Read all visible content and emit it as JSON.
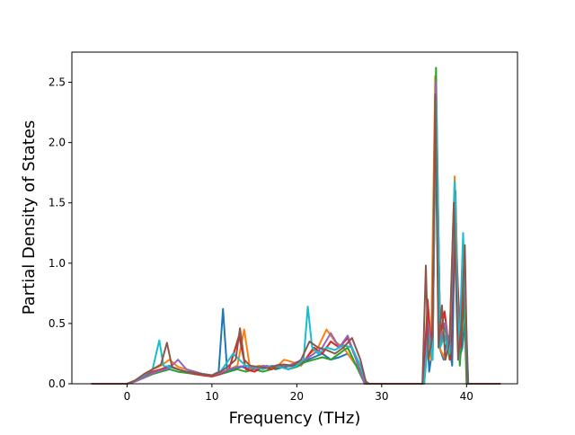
{
  "chart_data": {
    "type": "line",
    "title": "",
    "xlabel": "Frequency (THz)",
    "ylabel": "Partial Density of States",
    "xlim": [
      -6.5,
      46.0
    ],
    "ylim": [
      0.0,
      2.75
    ],
    "xticks": [
      0,
      10,
      20,
      30,
      40
    ],
    "yticks": [
      0.0,
      0.5,
      1.0,
      1.5,
      2.0,
      2.5
    ],
    "xtick_labels": [
      "0",
      "10",
      "20",
      "30",
      "40"
    ],
    "ytick_labels": [
      "0.0",
      "0.5",
      "1.0",
      "1.5",
      "2.0",
      "2.5"
    ],
    "grid": false,
    "legend": "none",
    "series": [
      {
        "color": "#1f77b4",
        "x": [
          -4.2,
          0,
          1,
          2,
          3,
          4,
          5,
          6,
          7,
          8,
          9,
          10,
          10.8,
          11.3,
          11.8,
          12.5,
          13.5,
          14.5,
          15.5,
          16.5,
          17.5,
          18.5,
          19.5,
          20.5,
          21.3,
          22,
          23,
          24,
          25,
          26,
          27,
          28,
          28.5,
          34.8,
          35.3,
          35.6,
          36.0,
          36.4,
          36.8,
          37.3,
          37.8,
          38.3,
          38.7,
          39.1,
          39.5,
          39.9,
          40.2,
          44
        ],
        "y": [
          0,
          0,
          0.02,
          0.06,
          0.1,
          0.12,
          0.15,
          0.12,
          0.1,
          0.09,
          0.08,
          0.07,
          0.1,
          0.62,
          0.1,
          0.12,
          0.14,
          0.12,
          0.13,
          0.15,
          0.12,
          0.14,
          0.15,
          0.18,
          0.2,
          0.22,
          0.25,
          0.2,
          0.22,
          0.25,
          0.15,
          0.03,
          0,
          0,
          0.5,
          0.1,
          0.3,
          2.45,
          0.3,
          0.2,
          0.4,
          0.15,
          1.6,
          0.2,
          0.3,
          0.6,
          0,
          0
        ]
      },
      {
        "color": "#ff7f0e",
        "x": [
          -4.2,
          0,
          1,
          2,
          3,
          4,
          5,
          6,
          7,
          8,
          9,
          10,
          11,
          12,
          13,
          13.8,
          14.5,
          15.5,
          16.5,
          17.5,
          18.5,
          19.5,
          20.5,
          21.5,
          22.5,
          23.5,
          24.5,
          25.5,
          26.5,
          27.5,
          28.3,
          35.0,
          35.4,
          35.8,
          36.3,
          36.8,
          37.5,
          38.0,
          38.6,
          39.2,
          39.8,
          40.1,
          44
        ],
        "y": [
          0,
          0,
          0.03,
          0.08,
          0.12,
          0.15,
          0.2,
          0.14,
          0.12,
          0.1,
          0.08,
          0.07,
          0.08,
          0.12,
          0.15,
          0.45,
          0.12,
          0.15,
          0.14,
          0.13,
          0.2,
          0.18,
          0.15,
          0.25,
          0.3,
          0.45,
          0.35,
          0.3,
          0.2,
          0.12,
          0,
          0,
          0.6,
          0.2,
          2.55,
          0.3,
          0.2,
          0.35,
          1.72,
          0.2,
          0.9,
          0,
          0
        ]
      },
      {
        "color": "#2ca02c",
        "x": [
          -4.2,
          0,
          1,
          2,
          3,
          4,
          5,
          6,
          7,
          8,
          9,
          10,
          11,
          12,
          13,
          14,
          15,
          16,
          17,
          18,
          19,
          20,
          21,
          22,
          23,
          24,
          25,
          26,
          27,
          28,
          35.0,
          35.5,
          36.0,
          36.4,
          36.9,
          37.4,
          38.0,
          38.6,
          39.2,
          39.7,
          40.0,
          44
        ],
        "y": [
          0,
          0,
          0.02,
          0.05,
          0.08,
          0.1,
          0.12,
          0.1,
          0.09,
          0.08,
          0.07,
          0.06,
          0.08,
          0.1,
          0.12,
          0.1,
          0.12,
          0.1,
          0.12,
          0.14,
          0.12,
          0.14,
          0.18,
          0.2,
          0.22,
          0.2,
          0.25,
          0.3,
          0.15,
          0,
          0,
          0.4,
          0.2,
          2.62,
          0.3,
          0.5,
          0.2,
          1.3,
          0.15,
          0.7,
          0,
          0
        ]
      },
      {
        "color": "#d62728",
        "x": [
          -4.2,
          0,
          1,
          2,
          3,
          4,
          5,
          6,
          7,
          8,
          9,
          10,
          11,
          12,
          13.2,
          14,
          15,
          16,
          17,
          18,
          19,
          20,
          21,
          22,
          23,
          24,
          25,
          26,
          27,
          28,
          35.0,
          35.4,
          35.9,
          36.4,
          36.9,
          37.4,
          38.1,
          38.6,
          39.3,
          39.8,
          40.1,
          44
        ],
        "y": [
          0,
          0,
          0.02,
          0.06,
          0.1,
          0.12,
          0.14,
          0.12,
          0.1,
          0.08,
          0.07,
          0.06,
          0.08,
          0.12,
          0.4,
          0.12,
          0.1,
          0.14,
          0.12,
          0.15,
          0.12,
          0.15,
          0.2,
          0.3,
          0.25,
          0.35,
          0.3,
          0.38,
          0.2,
          0,
          0,
          0.7,
          0.25,
          2.3,
          0.4,
          0.6,
          0.2,
          1.4,
          0.3,
          0.9,
          0,
          0
        ]
      },
      {
        "color": "#9467bd",
        "x": [
          -4.2,
          0,
          1,
          2,
          3,
          4,
          5,
          6,
          7,
          8,
          9,
          10,
          11,
          12,
          13,
          14,
          15,
          16,
          17,
          18,
          19,
          20,
          21,
          22,
          23,
          24,
          25,
          26,
          27,
          28,
          35.0,
          35.5,
          36.0,
          36.4,
          36.9,
          37.5,
          38.0,
          38.6,
          39.1,
          39.7,
          40.1,
          44
        ],
        "y": [
          0,
          0,
          0.02,
          0.05,
          0.09,
          0.11,
          0.13,
          0.2,
          0.12,
          0.1,
          0.08,
          0.07,
          0.09,
          0.12,
          0.14,
          0.15,
          0.12,
          0.15,
          0.14,
          0.16,
          0.15,
          0.18,
          0.2,
          0.25,
          0.3,
          0.42,
          0.3,
          0.4,
          0.2,
          0,
          0,
          0.5,
          0.2,
          2.5,
          0.35,
          0.5,
          0.3,
          1.5,
          0.25,
          1.0,
          0,
          0
        ]
      },
      {
        "color": "#17becf",
        "x": [
          -4.2,
          0,
          1,
          2,
          3,
          3.8,
          4.3,
          5,
          6,
          7,
          8,
          9,
          10,
          11,
          12,
          12.5,
          13.5,
          14,
          15,
          16,
          17,
          18,
          19,
          20,
          20.8,
          21.3,
          21.8,
          22.5,
          23.5,
          24.5,
          25.5,
          26.5,
          27.5,
          28.2,
          35.0,
          35.5,
          36.0,
          36.4,
          36.9,
          37.4,
          38.0,
          38.6,
          39.1,
          39.6,
          40.1,
          44
        ],
        "y": [
          0,
          0,
          0.03,
          0.07,
          0.12,
          0.36,
          0.15,
          0.14,
          0.12,
          0.1,
          0.09,
          0.08,
          0.07,
          0.1,
          0.2,
          0.25,
          0.18,
          0.15,
          0.14,
          0.12,
          0.15,
          0.14,
          0.12,
          0.15,
          0.2,
          0.64,
          0.3,
          0.25,
          0.3,
          0.28,
          0.32,
          0.3,
          0.15,
          0,
          0,
          0.4,
          0.2,
          2.35,
          0.3,
          0.4,
          0.25,
          1.68,
          0.2,
          1.25,
          0,
          0
        ]
      },
      {
        "color": "#8c564b",
        "x": [
          -4.2,
          0,
          1,
          2,
          3,
          4,
          4.7,
          5.3,
          6,
          7,
          8,
          9,
          10,
          11,
          12,
          12.8,
          13.3,
          13.8,
          14.5,
          15.5,
          16.5,
          17.5,
          18.5,
          19.5,
          20.5,
          21.5,
          22.5,
          23.5,
          24.5,
          25.5,
          26.5,
          27.5,
          28.2,
          34.8,
          35.2,
          35.5,
          36.0,
          36.3,
          36.7,
          37.1,
          37.5,
          38.0,
          38.5,
          39.0,
          39.4,
          39.8,
          40.1,
          44
        ],
        "y": [
          0,
          0,
          0.03,
          0.08,
          0.12,
          0.16,
          0.34,
          0.14,
          0.12,
          0.1,
          0.09,
          0.08,
          0.07,
          0.1,
          0.15,
          0.2,
          0.46,
          0.2,
          0.15,
          0.14,
          0.13,
          0.15,
          0.16,
          0.15,
          0.2,
          0.35,
          0.3,
          0.28,
          0.25,
          0.3,
          0.38,
          0.2,
          0,
          0,
          0.98,
          0.2,
          0.4,
          2.4,
          0.3,
          0.65,
          0.2,
          0.35,
          1.5,
          0.2,
          0.5,
          1.15,
          0,
          0
        ]
      }
    ]
  }
}
